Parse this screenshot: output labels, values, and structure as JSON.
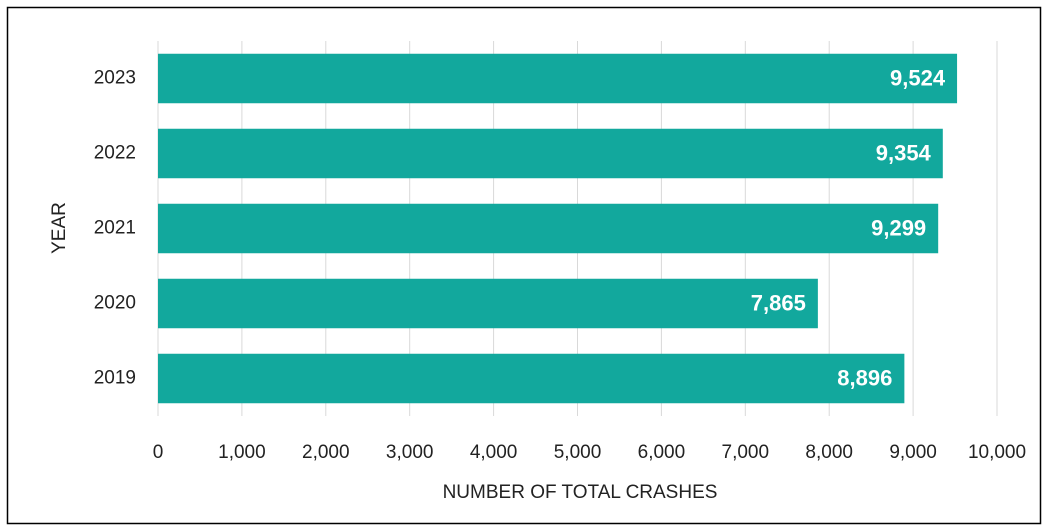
{
  "chart_data": {
    "type": "bar",
    "orientation": "horizontal",
    "xaxis_label": "NUMBER OF TOTAL CRASHES",
    "yaxis_label": "YEAR",
    "categories": [
      "2019",
      "2020",
      "2021",
      "2022",
      "2023"
    ],
    "values": [
      8896,
      7865,
      9299,
      9354,
      9524
    ],
    "value_labels": [
      "8,896",
      "7,865",
      "9,299",
      "9,354",
      "9,524"
    ],
    "color": "#12a89d",
    "xlim": [
      0,
      10000
    ],
    "xticks": [
      0,
      {
        "value": 1000,
        "label": "1,000"
      },
      {
        "value": 2000,
        "label": "2,000"
      },
      {
        "value": 3000,
        "label": "3,000"
      },
      {
        "value": 4000,
        "label": "4,000"
      },
      {
        "value": 5000,
        "label": "5,000"
      },
      {
        "value": 6000,
        "label": "6,000"
      },
      {
        "value": 7000,
        "label": "7,000"
      },
      {
        "value": 8000,
        "label": "8,000"
      },
      {
        "value": 9000,
        "label": "9,000"
      },
      {
        "value": 10000,
        "label": "10,000"
      }
    ],
    "grid": true
  }
}
